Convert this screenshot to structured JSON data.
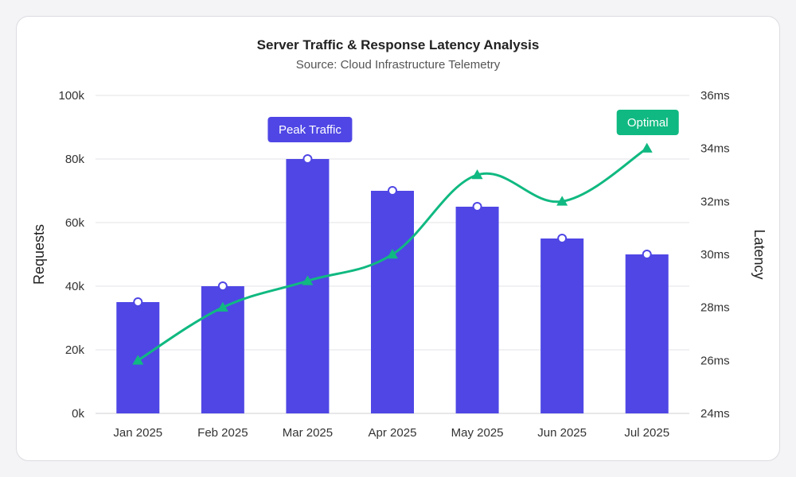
{
  "chart_data": {
    "type": "bar",
    "title": "Server Traffic & Response Latency Analysis",
    "subtitle": "Source: Cloud Infrastructure Telemetry",
    "categories": [
      "Jan 2025",
      "Feb 2025",
      "Mar 2025",
      "Apr 2025",
      "May 2025",
      "Jun 2025",
      "Jul 2025"
    ],
    "series": [
      {
        "type": "bar",
        "axis": "left",
        "values": [
          35000,
          40000,
          80000,
          70000,
          65000,
          55000,
          50000
        ],
        "color": "#4f46e5"
      },
      {
        "type": "line",
        "axis": "right",
        "values": [
          26,
          28,
          29,
          30,
          33,
          32,
          34
        ],
        "color": "#10b981"
      }
    ],
    "y_left": {
      "label": "Requests",
      "min": 0,
      "max": 100000,
      "ticks": [
        "0k",
        "20k",
        "40k",
        "60k",
        "80k",
        "100k"
      ]
    },
    "y_right": {
      "label": "Latency",
      "min": 24,
      "max": 36,
      "ticks": [
        "24ms",
        "26ms",
        "28ms",
        "30ms",
        "32ms",
        "34ms",
        "36ms"
      ]
    },
    "grid": true,
    "annotations": [
      {
        "text": "Peak Traffic",
        "category": "Mar 2025",
        "color": "#4f46e5"
      },
      {
        "text": "Optimal",
        "category": "Jul 2025",
        "color": "#10b981"
      }
    ]
  }
}
